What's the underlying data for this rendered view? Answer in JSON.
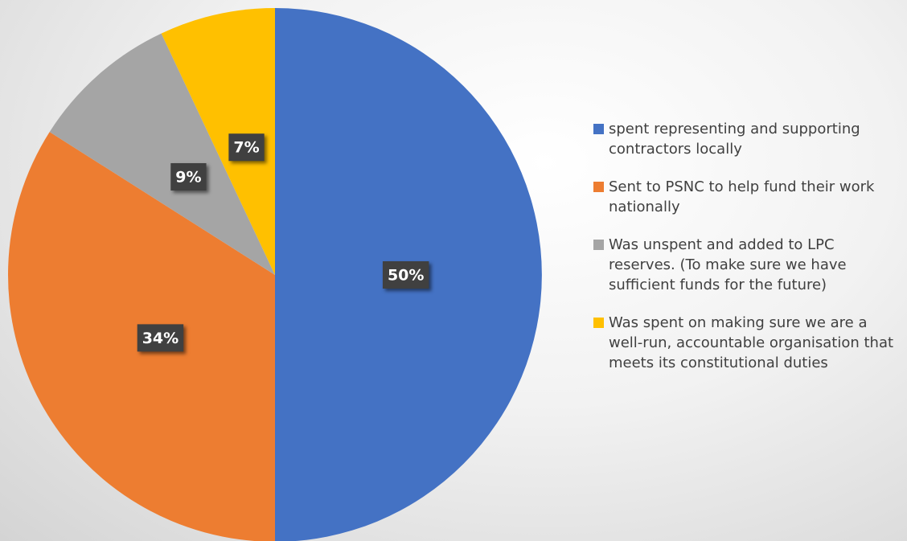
{
  "chart_data": {
    "type": "pie",
    "categories": [
      "spent representing and supporting contractors locally",
      "Sent to PSNC to help fund their work nationally",
      "Was unspent and added to LPC reserves. (To make sure we have sufficient funds for the future)",
      "Was spent on making sure we are a well-run, accountable organisation that meets its constitutional duties"
    ],
    "values": [
      50,
      34,
      9,
      7
    ],
    "value_labels": [
      "50%",
      "34%",
      "9%",
      "7%"
    ],
    "colors": [
      "#4472c4",
      "#ed7d31",
      "#a5a5a5",
      "#ffc000"
    ],
    "legend": "right"
  }
}
